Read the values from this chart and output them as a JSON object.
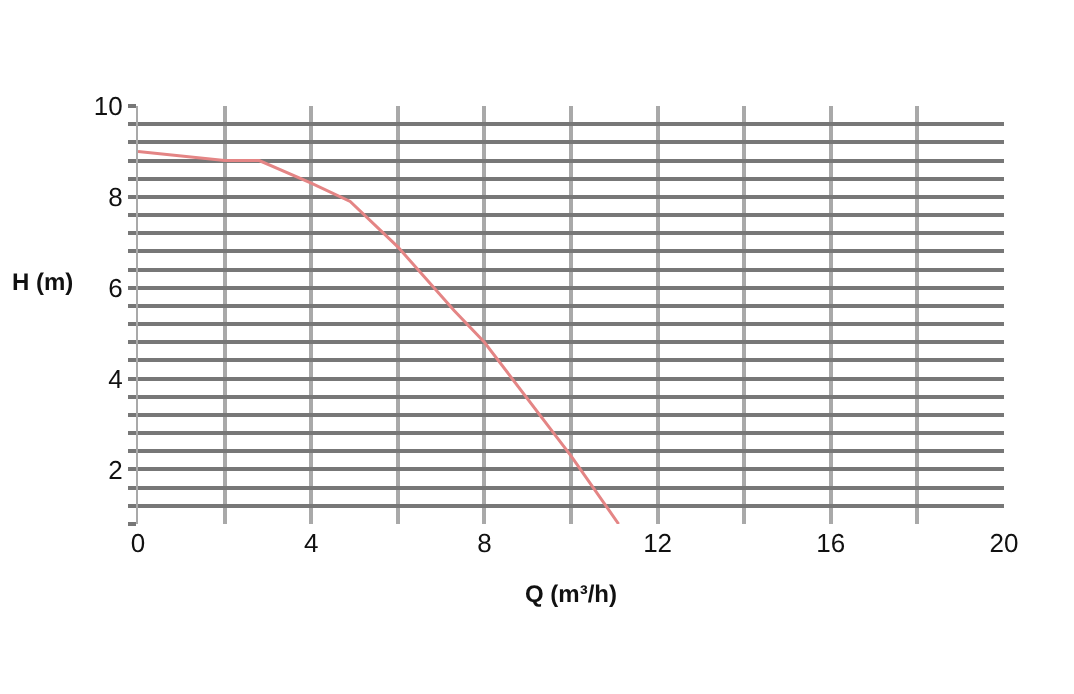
{
  "chart_data": {
    "type": "line",
    "xlabel": "Q (m³/h)",
    "ylabel": "H (m)",
    "x": [
      0,
      2,
      2.8,
      4,
      4.9,
      6,
      7.3,
      8,
      10,
      11.1
    ],
    "series": [
      {
        "color": "#e48585",
        "values": [
          9.0,
          8.8,
          8.8,
          8.3,
          7.9,
          6.9,
          5.5,
          4.8,
          2.3,
          0.8
        ]
      }
    ],
    "xlim": [
      0,
      20
    ],
    "ylim": [
      0.8,
      10
    ],
    "xticks": [
      0,
      {
        "value": 2,
        "label": null
      },
      4,
      {
        "value": 6,
        "label": null
      },
      8,
      {
        "value": 10,
        "label": null
      },
      12,
      {
        "value": 14,
        "label": null
      },
      16,
      {
        "value": 18,
        "label": null
      },
      20
    ],
    "yticks": [
      {
        "value": 0.8,
        "label": null
      },
      {
        "value": 1.2,
        "label": null
      },
      {
        "value": 1.6,
        "label": null
      },
      2,
      {
        "value": 2.4,
        "label": null
      },
      {
        "value": 2.8,
        "label": null
      },
      {
        "value": 3.2,
        "label": null
      },
      {
        "value": 3.6,
        "label": null
      },
      4,
      {
        "value": 4.4,
        "label": null
      },
      {
        "value": 4.8,
        "label": null
      },
      {
        "value": 5.2,
        "label": null
      },
      {
        "value": 5.6,
        "label": null
      },
      6,
      {
        "value": 6.4,
        "label": null
      },
      {
        "value": 6.8,
        "label": null
      },
      {
        "value": 7.2,
        "label": null
      },
      {
        "value": 7.6,
        "label": null
      },
      8,
      {
        "value": 8.4,
        "label": null
      },
      {
        "value": 8.8,
        "label": null
      },
      {
        "value": 9.2,
        "label": null
      },
      {
        "value": 9.6,
        "label": null
      },
      10
    ],
    "grid": true,
    "line_style": "solid",
    "marker": "none"
  }
}
